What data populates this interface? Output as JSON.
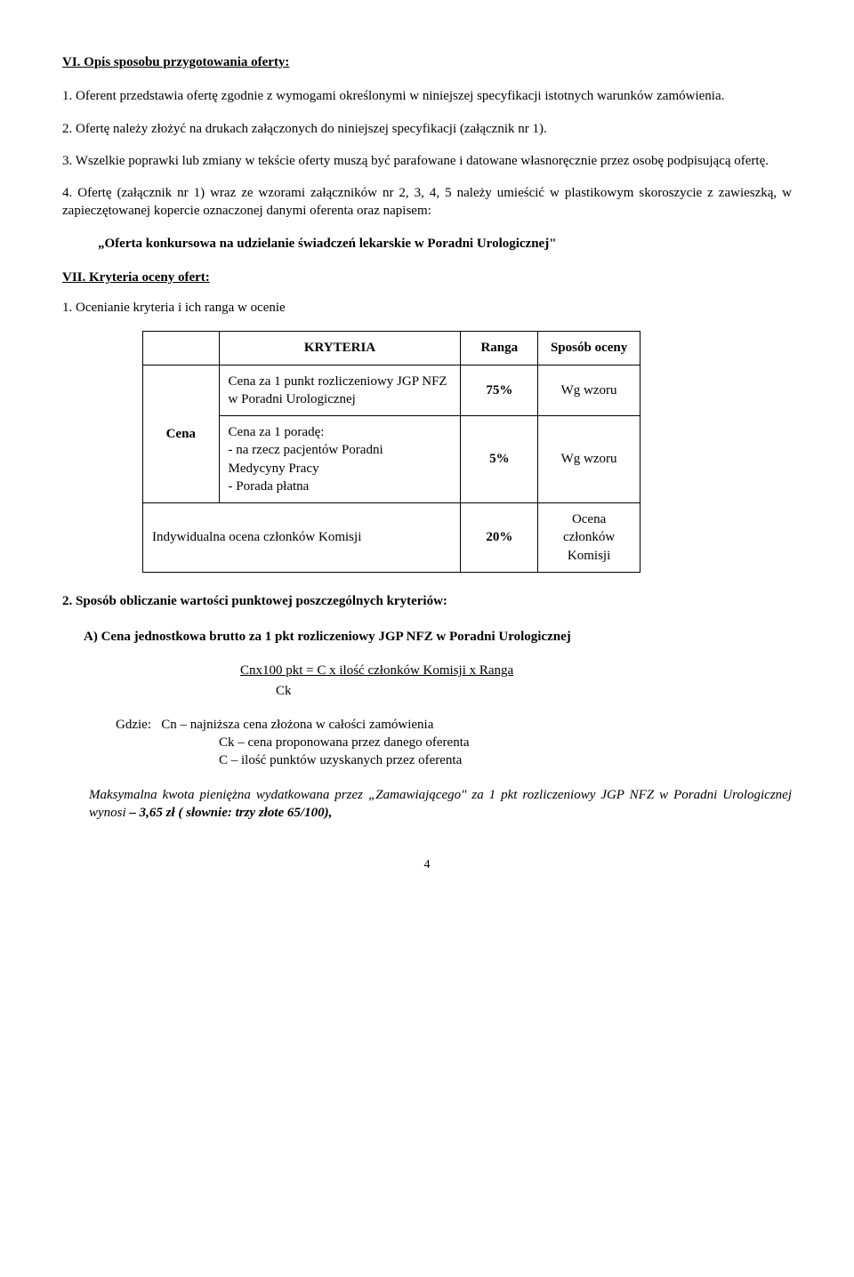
{
  "section6": {
    "heading": "VI. Opis sposobu przygotowania oferty:",
    "p1": "1. Oferent przedstawia ofertę zgodnie z wymogami określonymi w niniejszej specyfikacji istotnych warunków zamówienia.",
    "p2": "2. Ofertę należy złożyć na drukach załączonych do niniejszej specyfikacji  (załącznik nr 1).",
    "p3": "3. Wszelkie poprawki lub zmiany w tekście oferty muszą być parafowane i datowane własnoręcznie przez osobę podpisującą ofertę.",
    "p4": "4. Ofertę (załącznik nr 1) wraz ze wzorami załączników nr 2, 3, 4, 5 należy umieścić w plastikowym skoroszycie z zawieszką, w zapieczętowanej kopercie oznaczonej   danymi oferenta oraz napisem:",
    "quote": "„Oferta konkursowa na udzielanie świadczeń lekarskie w Poradni Urologicznej\""
  },
  "section7": {
    "heading": "VII. Kryteria oceny ofert:",
    "p1": "1. Ocenianie kryteria i ich ranga w ocenie",
    "table": {
      "headers": {
        "blank": "",
        "kryteria": "KRYTERIA",
        "ranga": "Ranga",
        "sposob": "Sposób oceny"
      },
      "row_label": "Cena",
      "row1": {
        "crit": "Cena za 1 punkt rozliczeniowy JGP NFZ w Poradni Urologicznej",
        "ranga": "75%",
        "sposob": "Wg wzoru"
      },
      "row2": {
        "crit_l1": "Cena za 1 poradę:",
        "crit_l2": "  - na rzecz pacjentów Poradni",
        "crit_l3": "    Medycyny  Pracy",
        "crit_l4": "  - Porada płatna",
        "ranga": "5%",
        "sposob": "Wg wzoru"
      },
      "row3": {
        "crit": "Indywidualna ocena członków Komisji",
        "ranga": "20%",
        "sposob": "Ocena członków Komisji"
      }
    },
    "p2": "2. Sposób obliczanie wartości punktowej poszczególnych kryteriów:",
    "subA": "A) Cena jednostkowa brutto za 1 pkt rozliczeniowy JGP  NFZ w Poradni Urologicznej",
    "formula_top": "Cnx100 pkt  = C x ilość członków Komisji x Ranga",
    "formula_bottom": "Ck",
    "where_label": "Gdzie:",
    "where_cn": "Cn – najniższa cena złożona w całości zamówienia",
    "where_ck": "Ck – cena proponowana przez danego oferenta",
    "where_c": "C   – ilość punktów uzyskanych przez oferenta",
    "final_prefix_italic": "Maksymalna kwota pieniężna wydatkowana przez „Zamawiającego\" za 1 pkt rozliczeniowy JGP  NFZ w Poradni Urologicznej  wynosi",
    "final_bold": " – 3,65 zł ( słownie: trzy złote 65/100),"
  },
  "page_number": "4"
}
